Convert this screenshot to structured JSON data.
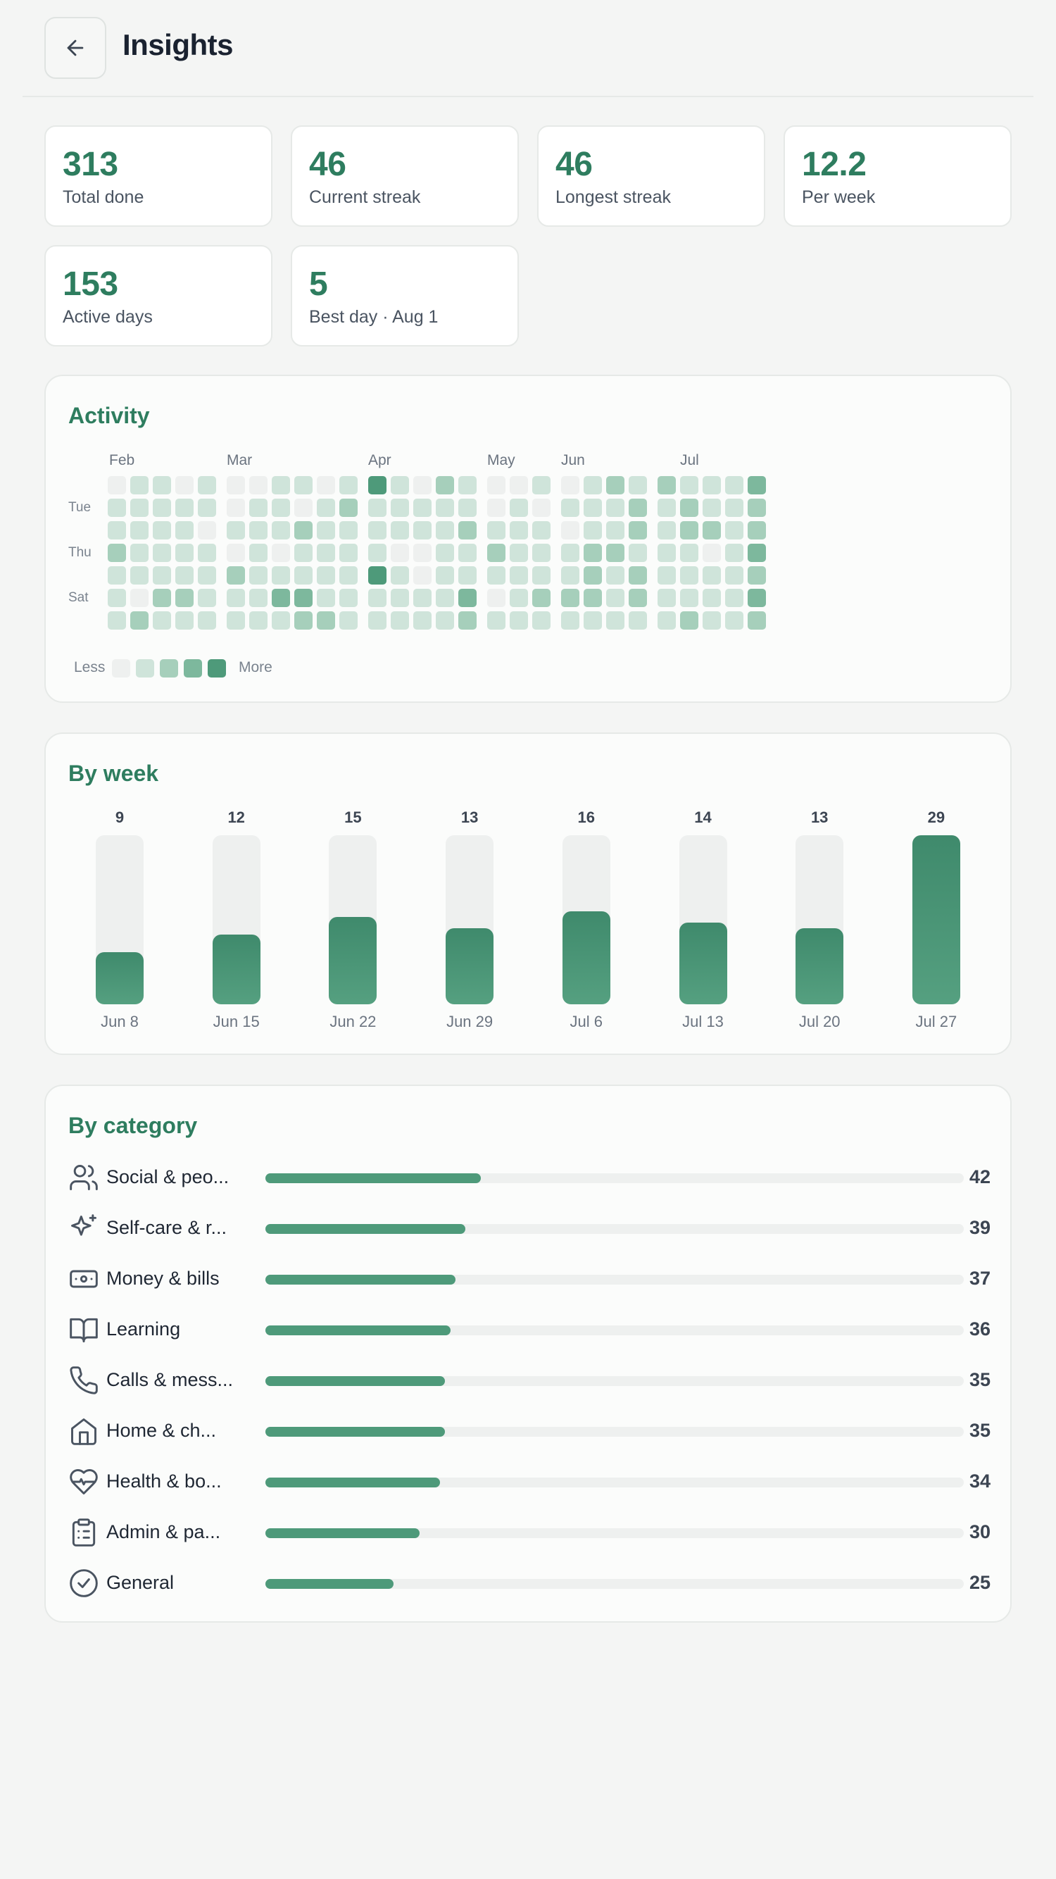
{
  "header": {
    "title": "Insights",
    "back_icon": "arrow-left-icon"
  },
  "stats": [
    {
      "value": "313",
      "label": "Total done"
    },
    {
      "value": "46",
      "label": "Current streak"
    },
    {
      "value": "46",
      "label": "Longest streak"
    },
    {
      "value": "12.2",
      "label": "Per week"
    },
    {
      "value": "153",
      "label": "Active days"
    },
    {
      "value": "5",
      "label": "Best day · Aug 1"
    }
  ],
  "activity": {
    "title": "Activity",
    "months": [
      "Feb",
      "Mar",
      "Apr",
      "May",
      "Jun",
      "Jul"
    ],
    "day_labels": [
      "Tue",
      "Thu",
      "Sat"
    ],
    "legend_less": "Less",
    "legend_more": "More",
    "levels_by_week": [
      [
        0,
        1,
        1,
        2,
        1,
        1,
        1
      ],
      [
        1,
        1,
        1,
        1,
        1,
        0,
        2
      ],
      [
        1,
        1,
        1,
        1,
        1,
        2,
        1
      ],
      [
        0,
        1,
        1,
        1,
        1,
        2,
        1
      ],
      [
        1,
        1,
        0,
        1,
        1,
        1,
        1
      ],
      [
        0,
        0,
        1,
        0,
        2,
        1,
        1
      ],
      [
        0,
        1,
        1,
        1,
        1,
        1,
        1
      ],
      [
        1,
        1,
        1,
        0,
        1,
        3,
        1
      ],
      [
        1,
        0,
        2,
        1,
        1,
        3,
        2
      ],
      [
        0,
        1,
        1,
        1,
        1,
        1,
        2
      ],
      [
        1,
        2,
        1,
        1,
        1,
        1,
        1
      ],
      [
        4,
        1,
        1,
        1,
        4,
        1,
        1
      ],
      [
        1,
        1,
        1,
        0,
        1,
        1,
        1
      ],
      [
        0,
        1,
        1,
        0,
        0,
        1,
        1
      ],
      [
        2,
        1,
        1,
        1,
        1,
        1,
        1
      ],
      [
        1,
        1,
        2,
        1,
        1,
        3,
        2
      ],
      [
        0,
        0,
        1,
        2,
        1,
        0,
        1
      ],
      [
        0,
        1,
        1,
        1,
        1,
        1,
        1
      ],
      [
        1,
        0,
        1,
        1,
        1,
        2,
        1
      ],
      [
        0,
        1,
        0,
        1,
        1,
        2,
        1
      ],
      [
        1,
        1,
        1,
        2,
        2,
        2,
        1
      ],
      [
        2,
        1,
        1,
        2,
        1,
        1,
        1
      ],
      [
        1,
        2,
        2,
        1,
        2,
        2,
        1
      ],
      [
        2,
        1,
        1,
        1,
        1,
        1,
        1
      ],
      [
        1,
        2,
        2,
        1,
        1,
        1,
        2
      ],
      [
        1,
        1,
        2,
        0,
        1,
        1,
        1
      ],
      [
        1,
        1,
        1,
        1,
        1,
        1,
        1
      ],
      [
        3,
        2,
        2,
        3,
        2,
        3,
        2
      ]
    ]
  },
  "by_week": {
    "title": "By week",
    "chart_data": {
      "type": "bar",
      "categories": [
        "Jun 8",
        "Jun 15",
        "Jun 22",
        "Jun 29",
        "Jul 6",
        "Jul 13",
        "Jul 20",
        "Jul 27"
      ],
      "values": [
        9,
        12,
        15,
        13,
        16,
        14,
        13,
        29
      ],
      "ylim": [
        0,
        29
      ]
    }
  },
  "by_category": {
    "title": "By category",
    "max": 136,
    "items": [
      {
        "name": "Social & peo...",
        "count": 42,
        "icon": "users-icon"
      },
      {
        "name": "Self-care & r...",
        "count": 39,
        "icon": "sparkle-icon"
      },
      {
        "name": "Money & bills",
        "count": 37,
        "icon": "banknote-icon"
      },
      {
        "name": "Learning",
        "count": 36,
        "icon": "book-open-icon"
      },
      {
        "name": "Calls & mess...",
        "count": 35,
        "icon": "phone-icon"
      },
      {
        "name": "Home & ch...",
        "count": 35,
        "icon": "home-icon"
      },
      {
        "name": "Health & bo...",
        "count": 34,
        "icon": "heart-pulse-icon"
      },
      {
        "name": "Admin & pa...",
        "count": 30,
        "icon": "clipboard-icon"
      },
      {
        "name": "General",
        "count": 25,
        "icon": "check-circle-icon"
      }
    ]
  },
  "colors": {
    "accent": "#2e7d5f",
    "heat_levels": [
      "#eef0ef",
      "#cfe4da",
      "#a6cfbb",
      "#7db89d",
      "#4e9a7a"
    ]
  }
}
